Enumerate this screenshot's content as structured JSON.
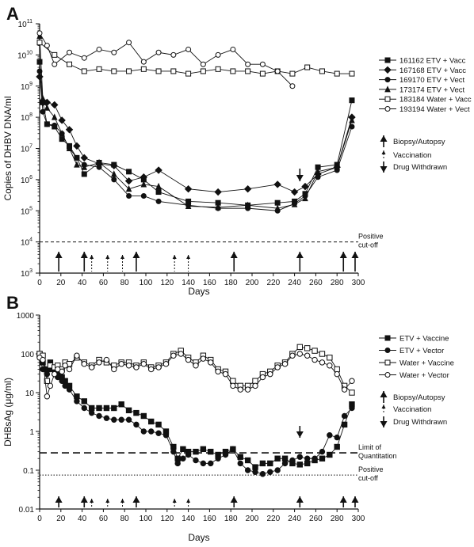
{
  "chart_data": [
    {
      "panel": "A",
      "type": "line",
      "xlabel": "Days",
      "ylabel": "Copies of DHBV DNA/ml",
      "xlim": [
        0,
        300
      ],
      "ylim": [
        1000,
        100000000000
      ],
      "yscale": "log",
      "xticks": [
        0,
        20,
        40,
        60,
        80,
        100,
        120,
        140,
        160,
        180,
        200,
        220,
        240,
        260,
        280,
        300
      ],
      "yticks": [
        {
          "v": 1000,
          "b": "10",
          "e": "3"
        },
        {
          "v": 10000,
          "b": "10",
          "e": "4"
        },
        {
          "v": 100000,
          "b": "10",
          "e": "5"
        },
        {
          "v": 1000000,
          "b": "10",
          "e": "6"
        },
        {
          "v": 10000000,
          "b": "10",
          "e": "7"
        },
        {
          "v": 100000000,
          "b": "10",
          "e": "8"
        },
        {
          "v": 1000000000,
          "b": "10",
          "e": "9"
        },
        {
          "v": 10000000000,
          "b": "10",
          "e": "10"
        },
        {
          "v": 100000000000,
          "b": "10",
          "e": "11"
        }
      ],
      "grid": false,
      "legend_position": "right",
      "series": [
        {
          "name": "161162 ETV + Vacc",
          "marker": "square-filled",
          "x": [
            0,
            3,
            7,
            14,
            21,
            28,
            35,
            42,
            56,
            70,
            84,
            98,
            112,
            140,
            168,
            196,
            224,
            240,
            250,
            262,
            280,
            294
          ],
          "y": [
            6000000000,
            300000000,
            60000000,
            50000000,
            20000000,
            12000000,
            5000000,
            1500000,
            3500000,
            3000000,
            1800000,
            1000000,
            400000,
            200000,
            180000,
            150000,
            180000,
            200000,
            350000,
            2500000,
            3000000,
            350000000
          ]
        },
        {
          "name": "167168 ETV + Vacc",
          "marker": "diamond-filled",
          "x": [
            0,
            3,
            7,
            14,
            21,
            28,
            35,
            42,
            56,
            70,
            84,
            98,
            112,
            140,
            168,
            196,
            224,
            240,
            250,
            262,
            280,
            294
          ],
          "y": [
            2000000000,
            300000000,
            300000000,
            250000000,
            80000000,
            40000000,
            12000000,
            5000000,
            3200000,
            2800000,
            900000,
            1200000,
            2000000,
            500000,
            400000,
            500000,
            700000,
            400000,
            600000,
            1500000,
            2500000,
            100000000
          ]
        },
        {
          "name": "169170 ETV + Vect",
          "marker": "circle-filled",
          "x": [
            0,
            3,
            7,
            14,
            21,
            28,
            35,
            42,
            56,
            70,
            84,
            98,
            112,
            140,
            168,
            196,
            224,
            240,
            250,
            262,
            280,
            294
          ],
          "y": [
            3000000000,
            150000000,
            60000000,
            55000000,
            30000000,
            10000000,
            5000000,
            3000000,
            2500000,
            1000000,
            300000,
            300000,
            200000,
            150000,
            120000,
            120000,
            100000,
            170000,
            300000,
            1200000,
            2000000,
            50000000
          ]
        },
        {
          "name": "173174 ETV + Vect",
          "marker": "triangle-filled",
          "x": [
            0,
            3,
            7,
            14,
            21,
            28,
            35,
            42,
            56,
            70,
            84,
            98,
            112,
            140,
            168,
            196,
            224,
            240,
            250,
            262,
            280,
            294
          ],
          "y": [
            40000000000,
            400000000,
            200000000,
            100000000,
            30000000,
            10000000,
            3000000,
            2500000,
            3500000,
            1500000,
            500000,
            700000,
            600000,
            140000,
            130000,
            150000,
            120000,
            160000,
            250000,
            1800000,
            2500000,
            80000000
          ]
        },
        {
          "name": "183184 Water + Vacc",
          "marker": "square-open",
          "x": [
            0,
            14,
            28,
            42,
            56,
            70,
            84,
            98,
            112,
            126,
            140,
            154,
            168,
            182,
            196,
            210,
            224,
            238,
            252,
            266,
            280,
            294
          ],
          "y": [
            25000000000,
            10000000000,
            5000000000,
            3000000000,
            3500000000,
            3000000000,
            3000000000,
            3500000000,
            3000000000,
            3000000000,
            2500000000,
            3000000000,
            3500000000,
            3000000000,
            3000000000,
            2500000000,
            3000000000,
            2500000000,
            4000000000,
            3000000000,
            2500000000,
            2500000000
          ]
        },
        {
          "name": "193194 Water + Vect",
          "marker": "circle-open",
          "x": [
            0,
            7,
            14,
            28,
            42,
            56,
            70,
            84,
            98,
            112,
            126,
            140,
            154,
            168,
            182,
            196,
            210,
            224,
            238
          ],
          "y": [
            50000000000,
            20000000000,
            5000000000,
            12000000000,
            8000000000,
            15000000000,
            12000000000,
            25000000000,
            6000000000,
            12000000000,
            10000000000,
            15000000000,
            5000000000,
            10000000000,
            15000000000,
            5000000000,
            5000000000,
            3000000000,
            1000000000
          ]
        }
      ],
      "reference_lines": [
        {
          "y": 10000,
          "style": "dashed",
          "label_lines": [
            "Positive",
            "cut-off"
          ]
        }
      ],
      "solid_arrows_days": [
        18,
        42,
        91,
        183,
        245,
        286,
        297
      ],
      "dotted_arrows_days": [
        49,
        64,
        78,
        127,
        140
      ],
      "drug_withdrawn_day": 245,
      "legend_keys": [
        "Biopsy/Autopsy",
        "Vaccination",
        "Drug Withdrawn"
      ]
    },
    {
      "panel": "B",
      "type": "line",
      "xlabel": "Days",
      "ylabel": "DHBsAg (μg/ml)",
      "xlim": [
        0,
        300
      ],
      "ylim": [
        0.01,
        1000
      ],
      "yscale": "log",
      "xticks": [
        0,
        20,
        40,
        60,
        80,
        100,
        120,
        140,
        160,
        180,
        200,
        220,
        240,
        260,
        280,
        300
      ],
      "yticks": [
        {
          "v": 0.01,
          "label": "0.01"
        },
        {
          "v": 0.1,
          "label": "0.1"
        },
        {
          "v": 1,
          "label": "1"
        },
        {
          "v": 10,
          "label": "10"
        },
        {
          "v": 100,
          "label": "100"
        },
        {
          "v": 1000,
          "label": "1000"
        }
      ],
      "grid": false,
      "legend_position": "right",
      "series": [
        {
          "name": "ETV + Vaccine",
          "marker": "square-filled",
          "x": [
            0,
            3,
            7,
            10,
            14,
            17,
            21,
            24,
            28,
            35,
            42,
            49,
            56,
            63,
            70,
            77,
            84,
            91,
            98,
            105,
            112,
            119,
            126,
            130,
            135,
            140,
            147,
            154,
            161,
            168,
            175,
            182,
            189,
            196,
            203,
            210,
            217,
            224,
            231,
            238,
            245,
            252,
            259,
            266,
            273,
            280,
            287,
            294
          ],
          "y": [
            100,
            60,
            40,
            60,
            40,
            30,
            25,
            20,
            15,
            8,
            6,
            4,
            4,
            4,
            4,
            5,
            3.5,
            3,
            2.5,
            1.8,
            1.5,
            1,
            0.4,
            0.2,
            0.35,
            0.3,
            0.3,
            0.35,
            0.3,
            0.25,
            0.3,
            0.35,
            0.22,
            0.18,
            0.12,
            0.15,
            0.15,
            0.2,
            0.2,
            0.15,
            0.14,
            0.15,
            0.18,
            0.2,
            0.25,
            0.4,
            1.5,
            5
          ]
        },
        {
          "name": "ETV + Vector",
          "marker": "circle-filled",
          "x": [
            0,
            3,
            7,
            10,
            14,
            17,
            21,
            24,
            28,
            35,
            42,
            49,
            56,
            63,
            70,
            77,
            84,
            91,
            98,
            105,
            112,
            119,
            126,
            130,
            135,
            140,
            147,
            154,
            161,
            168,
            175,
            182,
            189,
            196,
            203,
            210,
            217,
            224,
            231,
            238,
            245,
            252,
            259,
            266,
            273,
            280,
            287,
            294
          ],
          "y": [
            80,
            40,
            30,
            40,
            30,
            25,
            20,
            15,
            12,
            6,
            4,
            3,
            2.5,
            2.2,
            2,
            2,
            2,
            1.5,
            1,
            1,
            0.9,
            0.8,
            0.3,
            0.15,
            0.2,
            0.25,
            0.18,
            0.15,
            0.15,
            0.2,
            0.25,
            0.35,
            0.15,
            0.1,
            0.09,
            0.08,
            0.09,
            0.1,
            0.15,
            0.18,
            0.22,
            0.2,
            0.2,
            0.3,
            0.8,
            0.7,
            2.5,
            4
          ]
        },
        {
          "name": "Water + Vaccine",
          "marker": "square-open",
          "x": [
            0,
            3,
            7,
            10,
            14,
            17,
            21,
            24,
            28,
            35,
            42,
            49,
            56,
            63,
            70,
            77,
            84,
            91,
            98,
            105,
            112,
            119,
            126,
            133,
            140,
            147,
            154,
            161,
            168,
            175,
            182,
            189,
            196,
            203,
            210,
            217,
            224,
            231,
            238,
            245,
            252,
            259,
            266,
            273,
            280,
            287,
            294
          ],
          "y": [
            100,
            90,
            20,
            50,
            45,
            50,
            40,
            60,
            55,
            80,
            60,
            50,
            70,
            60,
            50,
            60,
            60,
            50,
            60,
            45,
            50,
            60,
            100,
            120,
            80,
            60,
            90,
            70,
            40,
            35,
            20,
            15,
            15,
            20,
            30,
            35,
            50,
            60,
            100,
            150,
            140,
            120,
            100,
            80,
            40,
            15,
            10
          ]
        },
        {
          "name": "Water + Vector",
          "marker": "circle-open",
          "x": [
            0,
            3,
            7,
            10,
            14,
            17,
            21,
            24,
            28,
            35,
            42,
            49,
            56,
            63,
            70,
            77,
            84,
            91,
            98,
            105,
            112,
            119,
            126,
            133,
            140,
            147,
            154,
            161,
            168,
            175,
            182,
            189,
            196,
            203,
            210,
            217,
            224,
            231,
            238,
            245,
            252,
            259,
            266,
            273,
            280,
            287,
            294
          ],
          "y": [
            80,
            70,
            8,
            15,
            30,
            40,
            35,
            50,
            40,
            90,
            55,
            45,
            60,
            70,
            40,
            55,
            50,
            45,
            55,
            40,
            45,
            55,
            90,
            100,
            70,
            50,
            75,
            60,
            35,
            30,
            15,
            12,
            12,
            15,
            25,
            30,
            45,
            55,
            90,
            100,
            90,
            70,
            60,
            50,
            30,
            12,
            20
          ]
        }
      ],
      "reference_lines": [
        {
          "y": 0.28,
          "style": "dashed",
          "label_lines": [
            "Limit of",
            "Quantitation"
          ]
        },
        {
          "y": 0.075,
          "style": "dotted",
          "label_lines": [
            "Positive",
            "cut-off"
          ]
        }
      ],
      "solid_arrows_days": [
        18,
        42,
        91,
        183,
        245,
        286,
        297
      ],
      "dotted_arrows_days": [
        49,
        64,
        78,
        127,
        140
      ],
      "drug_withdrawn_day": 245,
      "legend_keys": [
        "Biopsy/Autopsy",
        "Vaccination",
        "Drug Withdrawn"
      ]
    }
  ]
}
